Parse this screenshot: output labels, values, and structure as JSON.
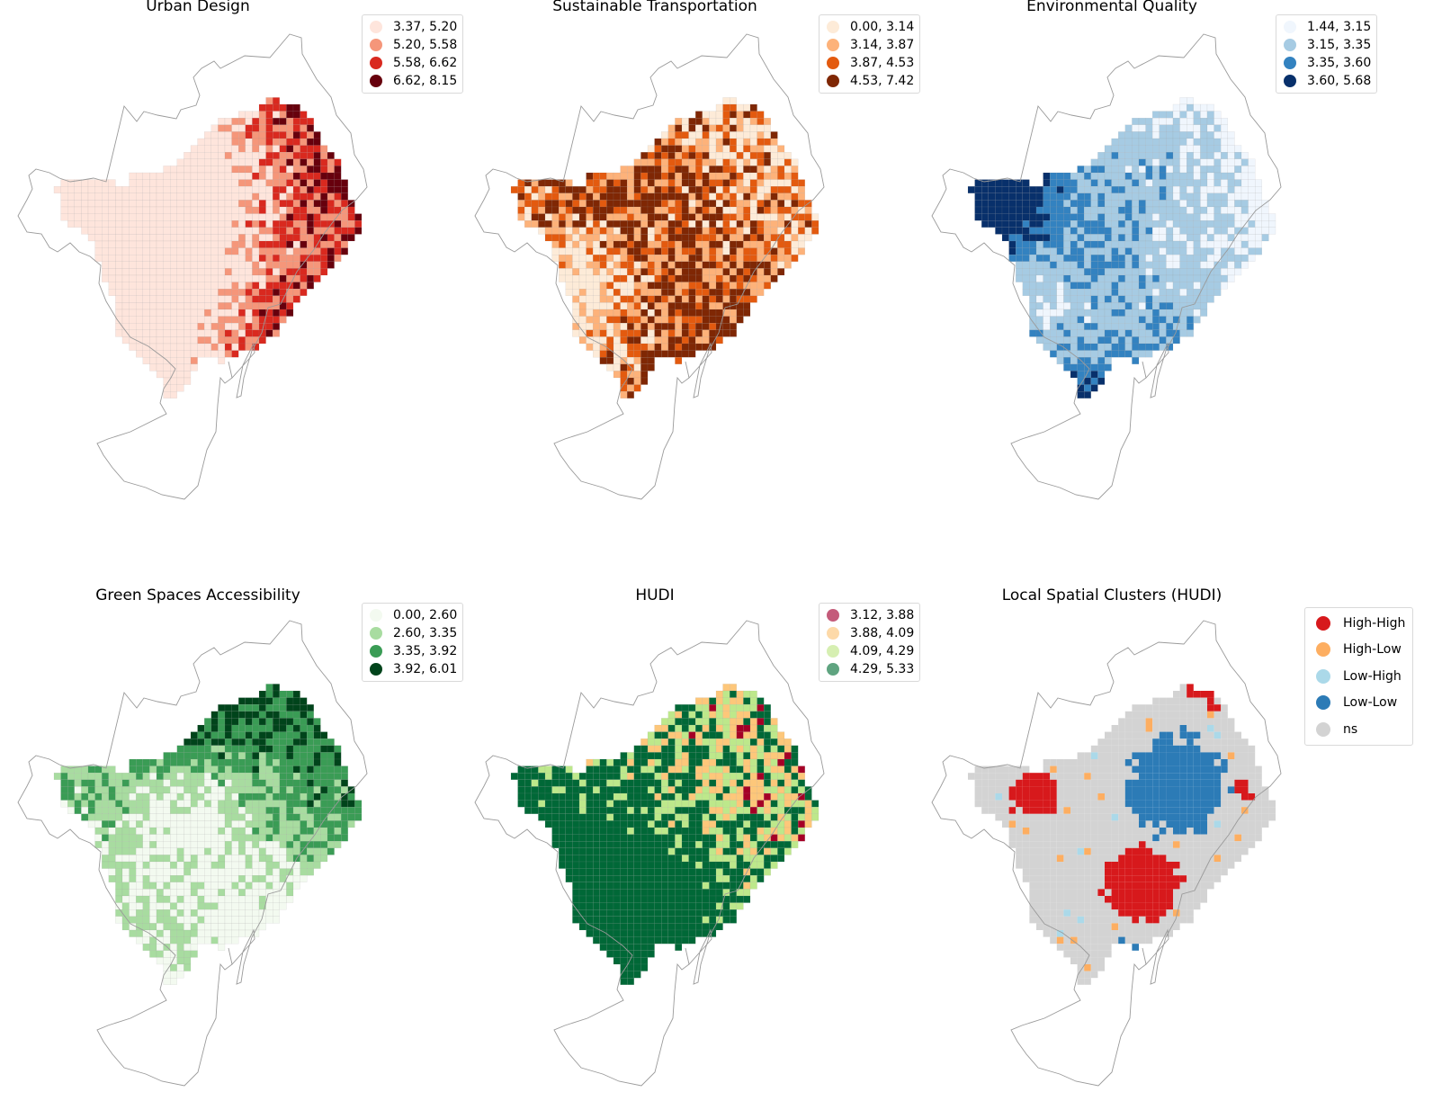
{
  "panels": [
    {
      "title": "Urban Design",
      "colors": [
        "#fee5dc",
        "#f5967a",
        "#d9291f",
        "#67000d"
      ],
      "legend": [
        {
          "label": "3.37, 5.20",
          "color": "#fee5dc"
        },
        {
          "label": "5.20, 5.58",
          "color": "#f5967a"
        },
        {
          "label": "5.58, 6.62",
          "color": "#d9291f"
        },
        {
          "label": "6.62, 8.15",
          "color": "#67000d"
        }
      ]
    },
    {
      "title": "Sustainable Transportation",
      "colors": [
        "#fdebd8",
        "#fdb27a",
        "#e35a0f",
        "#7f2704"
      ],
      "legend": [
        {
          "label": "0.00, 3.14",
          "color": "#fdebd8"
        },
        {
          "label": "3.14, 3.87",
          "color": "#fdb27a"
        },
        {
          "label": "3.87, 4.53",
          "color": "#e35a0f"
        },
        {
          "label": "4.53, 7.42",
          "color": "#7f2704"
        }
      ]
    },
    {
      "title": "Environmental Quality",
      "colors": [
        "#f0f6fd",
        "#a6cbe3",
        "#3382c0",
        "#08306b"
      ],
      "legend": [
        {
          "label": "1.44, 3.15",
          "color": "#f0f6fd"
        },
        {
          "label": "3.15, 3.35",
          "color": "#a6cbe3"
        },
        {
          "label": "3.35, 3.60",
          "color": "#3382c0"
        },
        {
          "label": "3.60, 5.68",
          "color": "#08306b"
        }
      ]
    },
    {
      "title": "Green Spaces Accessibility",
      "colors": [
        "#f3faf0",
        "#a8dca0",
        "#3a9c55",
        "#00441b"
      ],
      "legend": [
        {
          "label": "0.00, 2.60",
          "color": "#f3faf0"
        },
        {
          "label": "2.60, 3.35",
          "color": "#a8dca0"
        },
        {
          "label": "3.35, 3.92",
          "color": "#3a9c55"
        },
        {
          "label": "3.92, 6.01",
          "color": "#00441b"
        }
      ]
    },
    {
      "title": "HUDI",
      "colors": [
        "#a50026",
        "#fdc77a",
        "#bde88b",
        "#006837"
      ],
      "legend": [
        {
          "label": "3.12, 3.88",
          "color": "#c45b7a"
        },
        {
          "label": "3.88, 4.09",
          "color": "#fdd9a8"
        },
        {
          "label": "4.09, 4.29",
          "color": "#d6efb2"
        },
        {
          "label": "4.29, 5.33",
          "color": "#5fa480"
        }
      ]
    },
    {
      "title": "Local Spatial Clusters (HUDI)",
      "colors": [
        "#d7191c",
        "#fdae61",
        "#abd9e9",
        "#2c7bb6",
        "#d3d3d3"
      ],
      "legend": [
        {
          "label": "High-High",
          "color": "#d7191c"
        },
        {
          "label": "High-Low",
          "color": "#fdae61"
        },
        {
          "label": "Low-High",
          "color": "#abd9e9"
        },
        {
          "label": "Low-Low",
          "color": "#2c7bb6"
        },
        {
          "label": "ns",
          "color": "#d3d3d3"
        }
      ]
    }
  ]
}
